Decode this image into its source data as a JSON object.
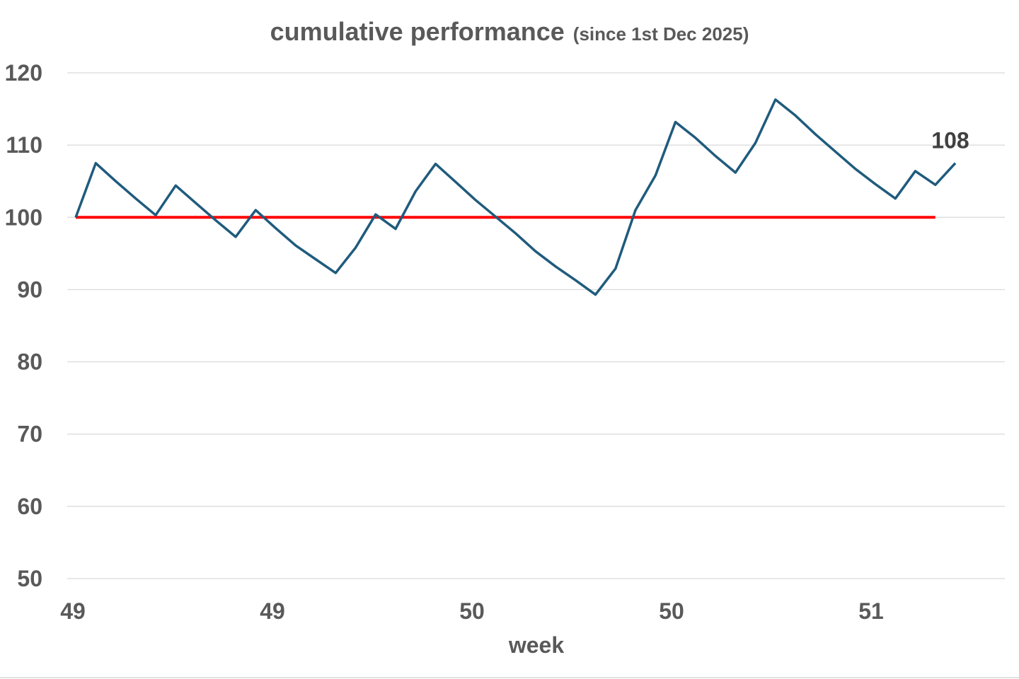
{
  "chart_data": {
    "type": "line",
    "title": "cumulative performance",
    "subtitle": "(since 1st Dec 2025)",
    "xlabel": "week",
    "ylabel": "",
    "ylim": [
      50,
      120
    ],
    "yticks": [
      "50",
      "60",
      "70",
      "80",
      "90",
      "100",
      "110",
      "120"
    ],
    "xtick_labels": [
      "49",
      "49",
      "50",
      "50",
      "51"
    ],
    "grid": true,
    "series": [
      {
        "name": "",
        "color": "#1f5b7d",
        "values": [
          100,
          107.5,
          105,
          102.6,
          100.3,
          104.4,
          102,
          99.6,
          97.3,
          101,
          98.5,
          96.1,
          94.2,
          92.3,
          95.8,
          100.4,
          98.4,
          103.6,
          107.4,
          104.9,
          102.4,
          100.1,
          97.8,
          95.3,
          93.2,
          91.3,
          89.3,
          92.9,
          101,
          105.8,
          113.2,
          111,
          108.5,
          106.2,
          110.3,
          116.3,
          114.1,
          111.5,
          109.1,
          106.7,
          104.6,
          102.6,
          106.4,
          104.5,
          107.5
        ],
        "end_label": "108"
      },
      {
        "name": "",
        "color": "#ff0000",
        "values": [
          100,
          100
        ]
      }
    ]
  }
}
